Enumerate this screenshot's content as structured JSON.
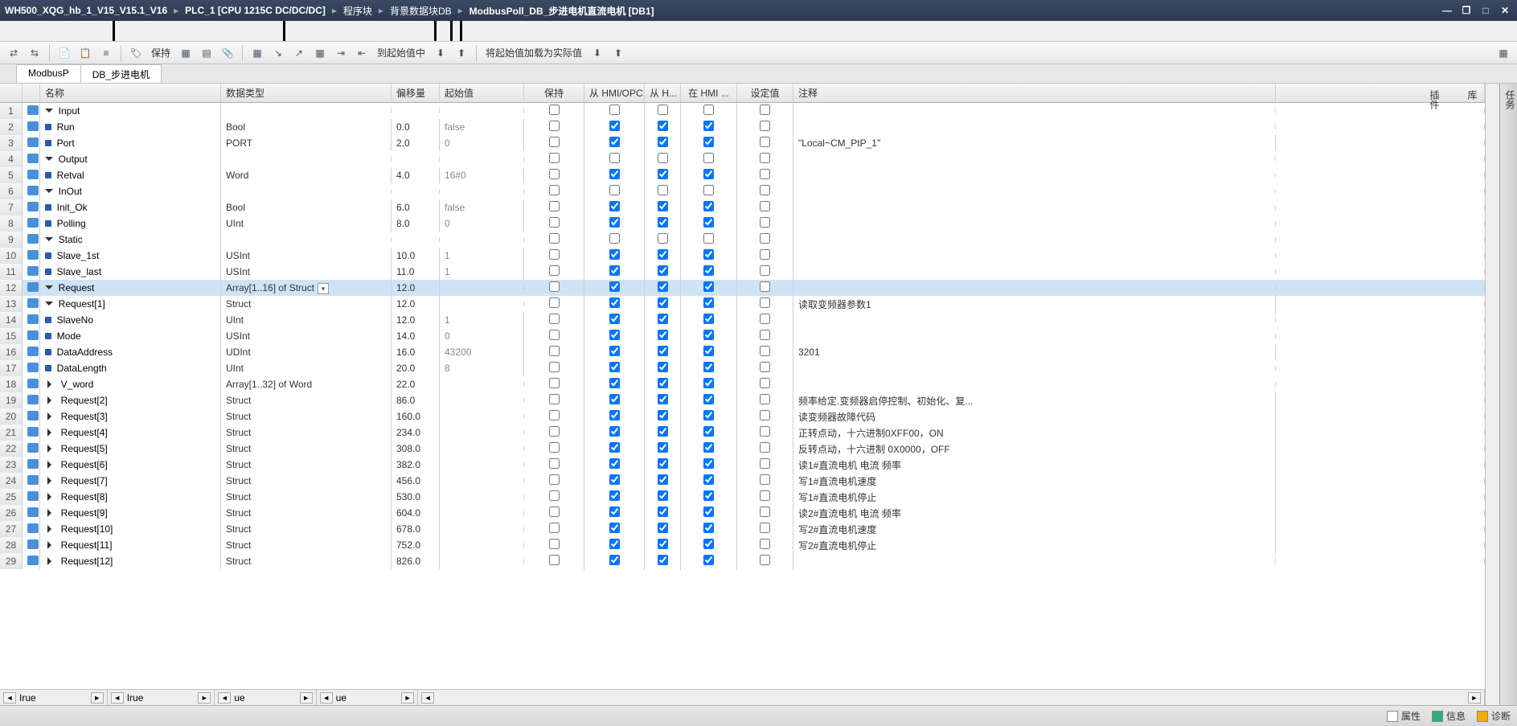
{
  "title_crumbs": [
    "WH500_XQG_hb_1_V15_V15.1_V16",
    "PLC_1 [CPU 1215C DC/DC/DC]",
    "程序块",
    "背景数据块DB",
    "ModbusPoll_DB_步进电机直流电机 [DB1]"
  ],
  "toolbar": {
    "keep": "保持",
    "load_to_start": "到起始值中",
    "load_start_as_actual": "将起始值加载为实际值"
  },
  "tabs": {
    "t1": "ModbusP",
    "t2": "DB_步进电机"
  },
  "headers": {
    "name": "名称",
    "type": "数据类型",
    "offset": "偏移量",
    "start": "起始值",
    "keep": "保持",
    "hmi1": "从 HMI/OPC...",
    "hmi2": "从 H...",
    "hmi3": "在 HMI ...",
    "set": "设定值",
    "comment": "注释"
  },
  "sidetabs": [
    "任务",
    "库",
    "插件"
  ],
  "status": {
    "prop": "属性",
    "info": "信息",
    "diag": "诊断"
  },
  "hscroll_labels": [
    "Irue",
    "Irue",
    "ue",
    "ue"
  ],
  "colors": {
    "titlebar": "#2b3a52",
    "accent": "#4a90d9",
    "sel": "#cfe3f7"
  },
  "rows": [
    {
      "n": 1,
      "lvl": 0,
      "exp": "down",
      "name": "Input",
      "type": "",
      "off": "",
      "start": "",
      "k": false,
      "h1": false,
      "h2": false,
      "h3": false,
      "s": false,
      "cm": ""
    },
    {
      "n": 2,
      "lvl": 1,
      "exp": "",
      "name": "Run",
      "type": "Bool",
      "off": "0.0",
      "start": "false",
      "k": false,
      "h1": true,
      "h2": true,
      "h3": true,
      "s": false,
      "cm": ""
    },
    {
      "n": 3,
      "lvl": 1,
      "exp": "",
      "name": "Port",
      "type": "PORT",
      "off": "2.0",
      "start": "0",
      "k": false,
      "h1": true,
      "h2": true,
      "h3": true,
      "s": false,
      "cm": "\"Local~CM_PtP_1\""
    },
    {
      "n": 4,
      "lvl": 0,
      "exp": "down",
      "name": "Output",
      "type": "",
      "off": "",
      "start": "",
      "k": false,
      "h1": false,
      "h2": false,
      "h3": false,
      "s": false,
      "cm": ""
    },
    {
      "n": 5,
      "lvl": 1,
      "exp": "",
      "name": "Retval",
      "type": "Word",
      "off": "4.0",
      "start": "16#0",
      "k": false,
      "h1": true,
      "h2": true,
      "h3": true,
      "s": false,
      "cm": ""
    },
    {
      "n": 6,
      "lvl": 0,
      "exp": "down",
      "name": "InOut",
      "type": "",
      "off": "",
      "start": "",
      "k": false,
      "h1": false,
      "h2": false,
      "h3": false,
      "s": false,
      "cm": ""
    },
    {
      "n": 7,
      "lvl": 1,
      "exp": "",
      "name": "Init_Ok",
      "type": "Bool",
      "off": "6.0",
      "start": "false",
      "k": false,
      "h1": true,
      "h2": true,
      "h3": true,
      "s": false,
      "cm": ""
    },
    {
      "n": 8,
      "lvl": 1,
      "exp": "",
      "name": "Polling",
      "type": "UInt",
      "off": "8.0",
      "start": "0",
      "k": false,
      "h1": true,
      "h2": true,
      "h3": true,
      "s": false,
      "cm": ""
    },
    {
      "n": 9,
      "lvl": 0,
      "exp": "down",
      "name": "Static",
      "type": "",
      "off": "",
      "start": "",
      "k": false,
      "h1": false,
      "h2": false,
      "h3": false,
      "s": false,
      "cm": ""
    },
    {
      "n": 10,
      "lvl": 1,
      "exp": "",
      "name": "Slave_1st",
      "type": "USInt",
      "off": "10.0",
      "start": "1",
      "k": false,
      "h1": true,
      "h2": true,
      "h3": true,
      "s": false,
      "cm": ""
    },
    {
      "n": 11,
      "lvl": 1,
      "exp": "",
      "name": "Slave_last",
      "type": "USInt",
      "off": "11.0",
      "start": "1",
      "k": false,
      "h1": true,
      "h2": true,
      "h3": true,
      "s": false,
      "cm": ""
    },
    {
      "n": 12,
      "lvl": 1,
      "exp": "down",
      "name": "Request",
      "type": "Array[1..16] of Struct",
      "dd": true,
      "off": "12.0",
      "start": "",
      "k": false,
      "h1": true,
      "h2": true,
      "h3": true,
      "s": false,
      "cm": "",
      "sel": true
    },
    {
      "n": 13,
      "lvl": 2,
      "exp": "down",
      "name": "Request[1]",
      "type": "Struct",
      "off": "12.0",
      "start": "",
      "k": false,
      "h1": true,
      "h2": true,
      "h3": true,
      "s": false,
      "cm": "读取变频器参数1"
    },
    {
      "n": 14,
      "lvl": 3,
      "exp": "",
      "name": "SlaveNo",
      "type": "UInt",
      "off": "12.0",
      "start": "1",
      "k": false,
      "h1": true,
      "h2": true,
      "h3": true,
      "s": false,
      "cm": ""
    },
    {
      "n": 15,
      "lvl": 3,
      "exp": "",
      "name": "Mode",
      "type": "USInt",
      "off": "14.0",
      "start": "0",
      "k": false,
      "h1": true,
      "h2": true,
      "h3": true,
      "s": false,
      "cm": ""
    },
    {
      "n": 16,
      "lvl": 3,
      "exp": "",
      "name": "DataAddress",
      "type": "UDInt",
      "off": "16.0",
      "start": "43200",
      "k": false,
      "h1": true,
      "h2": true,
      "h3": true,
      "s": false,
      "cm": "3201"
    },
    {
      "n": 17,
      "lvl": 3,
      "exp": "",
      "name": "DataLength",
      "type": "UInt",
      "off": "20.0",
      "start": "8",
      "k": false,
      "h1": true,
      "h2": true,
      "h3": true,
      "s": false,
      "cm": ""
    },
    {
      "n": 18,
      "lvl": 3,
      "exp": "right",
      "name": "V_word",
      "type": "Array[1..32] of Word",
      "off": "22.0",
      "start": "",
      "k": false,
      "h1": true,
      "h2": true,
      "h3": true,
      "s": false,
      "cm": ""
    },
    {
      "n": 19,
      "lvl": 2,
      "exp": "right",
      "name": "Request[2]",
      "type": "Struct",
      "off": "86.0",
      "start": "",
      "k": false,
      "h1": true,
      "h2": true,
      "h3": true,
      "s": false,
      "cm": "频率给定.变频器启停控制、初始化、复..."
    },
    {
      "n": 20,
      "lvl": 2,
      "exp": "right",
      "name": "Request[3]",
      "type": "Struct",
      "off": "160.0",
      "start": "",
      "k": false,
      "h1": true,
      "h2": true,
      "h3": true,
      "s": false,
      "cm": "读变频器故障代码"
    },
    {
      "n": 21,
      "lvl": 2,
      "exp": "right",
      "name": "Request[4]",
      "type": "Struct",
      "off": "234.0",
      "start": "",
      "k": false,
      "h1": true,
      "h2": true,
      "h3": true,
      "s": false,
      "cm": "  正转点动，十六进制0XFF00，ON"
    },
    {
      "n": 22,
      "lvl": 2,
      "exp": "right",
      "name": "Request[5]",
      "type": "Struct",
      "off": "308.0",
      "start": "",
      "k": false,
      "h1": true,
      "h2": true,
      "h3": true,
      "s": false,
      "cm": "  反转点动，十六进制 0X0000，OFF"
    },
    {
      "n": 23,
      "lvl": 2,
      "exp": "right",
      "name": "Request[6]",
      "type": "Struct",
      "off": "382.0",
      "start": "",
      "k": false,
      "h1": true,
      "h2": true,
      "h3": true,
      "s": false,
      "cm": "读1#直流电机 电流 频率"
    },
    {
      "n": 24,
      "lvl": 2,
      "exp": "right",
      "name": "Request[7]",
      "type": "Struct",
      "off": "456.0",
      "start": "",
      "k": false,
      "h1": true,
      "h2": true,
      "h3": true,
      "s": false,
      "cm": "写1#直流电机速度"
    },
    {
      "n": 25,
      "lvl": 2,
      "exp": "right",
      "name": "Request[8]",
      "type": "Struct",
      "off": "530.0",
      "start": "",
      "k": false,
      "h1": true,
      "h2": true,
      "h3": true,
      "s": false,
      "cm": "写1#直流电机停止"
    },
    {
      "n": 26,
      "lvl": 2,
      "exp": "right",
      "name": "Request[9]",
      "type": "Struct",
      "off": "604.0",
      "start": "",
      "k": false,
      "h1": true,
      "h2": true,
      "h3": true,
      "s": false,
      "cm": "读2#直流电机 电流 频率"
    },
    {
      "n": 27,
      "lvl": 2,
      "exp": "right",
      "name": "Request[10]",
      "type": "Struct",
      "off": "678.0",
      "start": "",
      "k": false,
      "h1": true,
      "h2": true,
      "h3": true,
      "s": false,
      "cm": "写2#直流电机速度"
    },
    {
      "n": 28,
      "lvl": 2,
      "exp": "right",
      "name": "Request[11]",
      "type": "Struct",
      "off": "752.0",
      "start": "",
      "k": false,
      "h1": true,
      "h2": true,
      "h3": true,
      "s": false,
      "cm": "写2#直流电机停止"
    },
    {
      "n": 29,
      "lvl": 2,
      "exp": "right",
      "name": "Request[12]",
      "type": "Struct",
      "off": "826.0",
      "start": "",
      "k": false,
      "h1": true,
      "h2": true,
      "h3": true,
      "s": false,
      "cm": ""
    }
  ]
}
